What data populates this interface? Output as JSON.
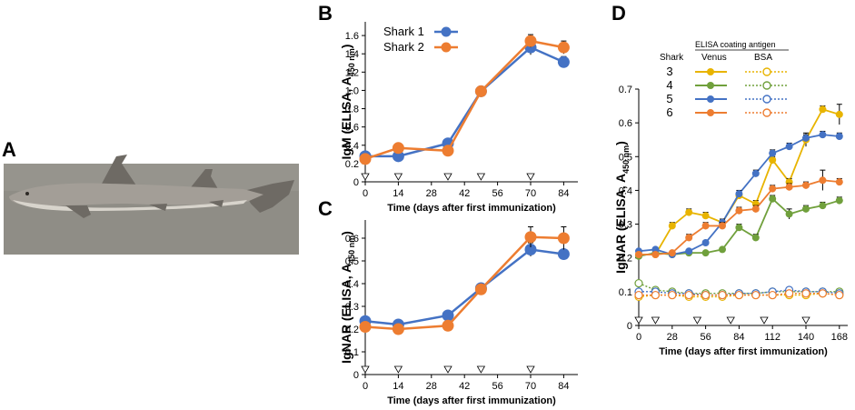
{
  "panels": {
    "A": {
      "letter": "A"
    },
    "B": {
      "letter": "B"
    },
    "C": {
      "letter": "C"
    },
    "D": {
      "letter": "D"
    }
  },
  "colors": {
    "blue": "#4472c4",
    "orange": "#ed7d31",
    "green": "#70a03c",
    "gold": "#e8b400"
  },
  "chart_data": [
    {
      "id": "B",
      "type": "line",
      "title": "",
      "xlabel": "Time (days after first immunization)",
      "ylabel": "IgM (ELISA, A",
      "ylabel_sub": "450 nm",
      "ylabel_close": ")",
      "xlim": [
        0,
        90
      ],
      "ylim": [
        0,
        1.75
      ],
      "xticks": [
        0,
        14,
        28,
        42,
        56,
        70,
        84
      ],
      "yticks": [
        0,
        0.2,
        0.4,
        0.6,
        0.8,
        1.0,
        1.2,
        1.4,
        1.6
      ],
      "ytick_labels": [
        "0",
        "0.2",
        "0.4",
        "0.6",
        "0.8",
        "1.0",
        "1.2",
        "1.4",
        "1.6"
      ],
      "immunization_days": [
        0,
        14,
        35,
        49,
        70
      ],
      "legend": [
        "Shark 1",
        "Shark 2"
      ],
      "series": [
        {
          "name": "Shark 1",
          "color": "#4472c4",
          "x": [
            0,
            14,
            35,
            49,
            70,
            84
          ],
          "values": [
            0.28,
            0.28,
            0.42,
            0.99,
            1.47,
            1.31
          ],
          "err": [
            0.02,
            0.02,
            0.03,
            0.03,
            0.08,
            0.06
          ]
        },
        {
          "name": "Shark 2",
          "color": "#ed7d31",
          "x": [
            0,
            14,
            35,
            49,
            70,
            84
          ],
          "values": [
            0.25,
            0.37,
            0.34,
            0.99,
            1.54,
            1.47
          ],
          "err": [
            0.02,
            0.02,
            0.02,
            0.03,
            0.07,
            0.07
          ]
        }
      ]
    },
    {
      "id": "C",
      "type": "line",
      "title": "",
      "xlabel": "Time (days after first immunization)",
      "ylabel": "IgNAR (ELISA, A",
      "ylabel_sub": "450 nm",
      "ylabel_close": ")",
      "xlim": [
        0,
        90
      ],
      "ylim": [
        0,
        0.68
      ],
      "xticks": [
        0,
        14,
        28,
        42,
        56,
        70,
        84
      ],
      "yticks": [
        0,
        0.1,
        0.2,
        0.3,
        0.4,
        0.5,
        0.6
      ],
      "ytick_labels": [
        "0",
        "0.1",
        "0.2",
        "0.3",
        "0.4",
        "0.5",
        "0.6"
      ],
      "immunization_days": [
        0,
        14,
        35,
        49,
        70
      ],
      "series": [
        {
          "name": "Shark 1",
          "color": "#4472c4",
          "x": [
            0,
            14,
            35,
            49,
            70,
            84
          ],
          "values": [
            0.235,
            0.22,
            0.26,
            0.38,
            0.55,
            0.53
          ],
          "err": [
            0.015,
            0.01,
            0.015,
            0.02,
            0.03,
            0.02
          ]
        },
        {
          "name": "Shark 2",
          "color": "#ed7d31",
          "x": [
            0,
            14,
            35,
            49,
            70,
            84
          ],
          "values": [
            0.21,
            0.2,
            0.215,
            0.375,
            0.605,
            0.6
          ],
          "err": [
            0.01,
            0.02,
            0.01,
            0.02,
            0.045,
            0.05
          ]
        }
      ]
    },
    {
      "id": "D",
      "type": "line",
      "title": "",
      "xlabel": "Time (days after first immunization)",
      "ylabel": "IgNAR (ELISA, A",
      "ylabel_sub": "450 nm",
      "ylabel_close": ")",
      "xlim": [
        0,
        175
      ],
      "ylim": [
        0,
        0.7
      ],
      "xticks": [
        0,
        28,
        56,
        84,
        112,
        140,
        168
      ],
      "yticks": [
        0,
        0.1,
        0.2,
        0.3,
        0.4,
        0.5,
        0.6,
        0.7
      ],
      "ytick_labels": [
        "0",
        "0.1",
        "0.2",
        "0.3",
        "0.4",
        "0.5",
        "0.6",
        "0.7"
      ],
      "immunization_days": [
        0,
        14,
        49,
        77,
        105,
        140
      ],
      "legend_header": "ELISA coating antigen",
      "legend_col_shark": "Shark",
      "legend_col_venus": "Venus",
      "legend_col_bsa": "BSA",
      "sharks": [
        "3",
        "4",
        "5",
        "6"
      ],
      "series": [
        {
          "name": "Shark 3 Venus",
          "shark": "3",
          "antigen": "Venus",
          "color": "#e8b400",
          "dashed": false,
          "x": [
            0,
            14,
            28,
            42,
            56,
            70,
            84,
            98,
            112,
            126,
            140,
            154,
            168
          ],
          "values": [
            0.21,
            0.21,
            0.295,
            0.335,
            0.325,
            0.305,
            0.385,
            0.36,
            0.49,
            0.425,
            0.55,
            0.64,
            0.625
          ],
          "err": [
            0.005,
            0.005,
            0.01,
            0.01,
            0.01,
            0.01,
            0.01,
            0.01,
            0.01,
            0.01,
            0.02,
            0.01,
            0.03
          ]
        },
        {
          "name": "Shark 4 Venus",
          "shark": "4",
          "antigen": "Venus",
          "color": "#70a03c",
          "dashed": false,
          "x": [
            0,
            14,
            28,
            42,
            56,
            70,
            84,
            98,
            112,
            126,
            140,
            154,
            168
          ],
          "values": [
            0.205,
            0.215,
            0.21,
            0.215,
            0.215,
            0.225,
            0.29,
            0.26,
            0.375,
            0.33,
            0.345,
            0.355,
            0.37
          ],
          "err": [
            0.005,
            0.005,
            0.005,
            0.005,
            0.005,
            0.005,
            0.01,
            0.01,
            0.01,
            0.015,
            0.01,
            0.01,
            0.01
          ]
        },
        {
          "name": "Shark 5 Venus",
          "shark": "5",
          "antigen": "Venus",
          "color": "#4472c4",
          "dashed": false,
          "x": [
            0,
            14,
            28,
            42,
            56,
            70,
            84,
            98,
            112,
            126,
            140,
            154,
            168
          ],
          "values": [
            0.22,
            0.225,
            0.21,
            0.22,
            0.245,
            0.305,
            0.39,
            0.45,
            0.51,
            0.53,
            0.555,
            0.565,
            0.56
          ],
          "err": [
            0.005,
            0.005,
            0.005,
            0.005,
            0.005,
            0.01,
            0.01,
            0.01,
            0.01,
            0.01,
            0.01,
            0.01,
            0.01
          ]
        },
        {
          "name": "Shark 6 Venus",
          "shark": "6",
          "antigen": "Venus",
          "color": "#ed7d31",
          "dashed": false,
          "x": [
            0,
            14,
            28,
            42,
            56,
            70,
            84,
            98,
            112,
            126,
            140,
            154,
            168
          ],
          "values": [
            0.21,
            0.21,
            0.215,
            0.26,
            0.295,
            0.295,
            0.34,
            0.345,
            0.405,
            0.41,
            0.415,
            0.43,
            0.425
          ],
          "err": [
            0.005,
            0.005,
            0.005,
            0.01,
            0.01,
            0.01,
            0.01,
            0.01,
            0.01,
            0.01,
            0.01,
            0.03,
            0.01
          ]
        },
        {
          "name": "Shark 3 BSA",
          "shark": "3",
          "antigen": "BSA",
          "color": "#e8b400",
          "dashed": true,
          "x": [
            0,
            14,
            28,
            42,
            56,
            70,
            84,
            98,
            112,
            126,
            140,
            154,
            168
          ],
          "values": [
            0.085,
            0.09,
            0.09,
            0.085,
            0.085,
            0.085,
            0.09,
            0.09,
            0.09,
            0.09,
            0.09,
            0.095,
            0.09
          ],
          "err": [
            0,
            0,
            0,
            0,
            0,
            0,
            0,
            0,
            0,
            0,
            0,
            0,
            0
          ]
        },
        {
          "name": "Shark 4 BSA",
          "shark": "4",
          "antigen": "BSA",
          "color": "#70a03c",
          "dashed": true,
          "x": [
            0,
            14,
            28,
            42,
            56,
            70,
            84,
            98,
            112,
            126,
            140,
            154,
            168
          ],
          "values": [
            0.125,
            0.105,
            0.1,
            0.095,
            0.095,
            0.095,
            0.095,
            0.095,
            0.1,
            0.1,
            0.1,
            0.1,
            0.1
          ],
          "err": [
            0,
            0,
            0,
            0,
            0,
            0,
            0,
            0,
            0,
            0,
            0,
            0,
            0
          ]
        },
        {
          "name": "Shark 5 BSA",
          "shark": "5",
          "antigen": "BSA",
          "color": "#4472c4",
          "dashed": true,
          "x": [
            0,
            14,
            28,
            42,
            56,
            70,
            84,
            98,
            112,
            126,
            140,
            154,
            168
          ],
          "values": [
            0.1,
            0.1,
            0.095,
            0.095,
            0.09,
            0.09,
            0.095,
            0.095,
            0.1,
            0.105,
            0.1,
            0.1,
            0.095
          ],
          "err": [
            0,
            0,
            0,
            0,
            0,
            0,
            0,
            0,
            0,
            0,
            0,
            0,
            0
          ]
        },
        {
          "name": "Shark 6 BSA",
          "shark": "6",
          "antigen": "BSA",
          "color": "#ed7d31",
          "dashed": true,
          "x": [
            0,
            14,
            28,
            42,
            56,
            70,
            84,
            98,
            112,
            126,
            140,
            154,
            168
          ],
          "values": [
            0.09,
            0.09,
            0.09,
            0.09,
            0.09,
            0.09,
            0.09,
            0.09,
            0.09,
            0.095,
            0.095,
            0.095,
            0.09
          ],
          "err": [
            0,
            0,
            0,
            0,
            0,
            0,
            0,
            0,
            0,
            0,
            0,
            0,
            0
          ]
        }
      ]
    }
  ]
}
